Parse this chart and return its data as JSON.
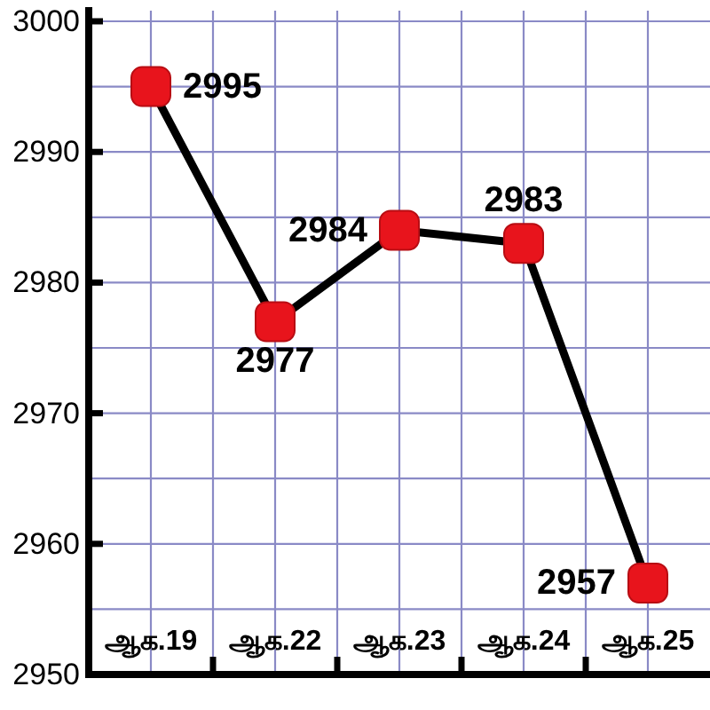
{
  "chart_data": {
    "type": "line",
    "categories": [
      "ஆக.19",
      "ஆக.22",
      "ஆக.23",
      "ஆக.24",
      "ஆக.25"
    ],
    "series": [
      {
        "color": "#000000",
        "colors": [
          "#e8141c",
          "#e8141c",
          "#e8141c",
          "#e8141c",
          "#e8141c"
        ],
        "values": [
          2995,
          2977,
          2984,
          2983,
          2957
        ]
      }
    ],
    "ylim": [
      2950,
      3000
    ],
    "yticks": [
      2950,
      2960,
      2970,
      2980,
      2990,
      3000
    ],
    "grid": true,
    "marker": "square",
    "data_labels": true
  }
}
